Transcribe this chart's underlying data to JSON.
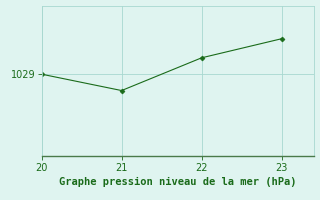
{
  "x": [
    20,
    21,
    22,
    23
  ],
  "y": [
    1029.0,
    1027.8,
    1030.2,
    1031.6
  ],
  "line_color": "#1a6b1a",
  "marker": "D",
  "marker_size": 2.5,
  "background_color": "#dff4f0",
  "grid_color": "#a8d8d0",
  "spine_color": "#4a7a4a",
  "tick_color": "#1a6b1a",
  "xlabel": "Graphe pression niveau de la mer (hPa)",
  "xlabel_color": "#1a6b1a",
  "xlabel_fontsize": 7.5,
  "ytick_labels": [
    "1029"
  ],
  "ytick_values": [
    1029.0
  ],
  "xlim": [
    20,
    23.4
  ],
  "ylim": [
    1023.0,
    1034.0
  ],
  "xticks": [
    20,
    21,
    22,
    23
  ],
  "tick_fontsize": 7
}
